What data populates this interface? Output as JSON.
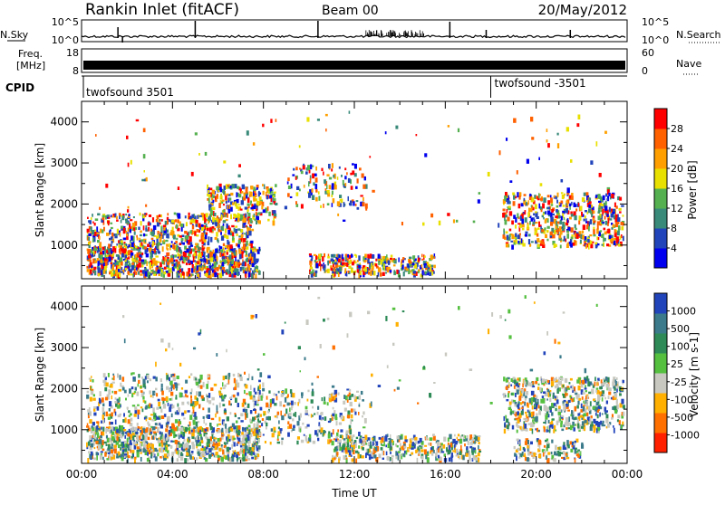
{
  "header": {
    "station": "Rankin Inlet (fitACF)",
    "beam": "Beam 00",
    "date": "20/May/2012"
  },
  "noise_panel": {
    "left_label": "N.Sky",
    "right_label": "N.Search",
    "left_ticks": [
      "10^5",
      "10^0"
    ],
    "right_ticks": [
      "10^5",
      "10^0"
    ]
  },
  "freq_panel": {
    "left_label_line1": "Freq.",
    "left_label_line2": "[MHz]",
    "left_ticks": [
      "18",
      "8"
    ],
    "right_label": "Nave",
    "right_ticks": [
      "60",
      "0"
    ]
  },
  "cpid_panel": {
    "label": "CPID",
    "segments": [
      {
        "name": "twofsound 3501",
        "start_hour": 0
      },
      {
        "name": "twofsound -3501",
        "start_hour": 18
      }
    ]
  },
  "chart_data": [
    {
      "type": "heatmap",
      "name": "",
      "ylabel": "Slant Range [km]",
      "xlabel": "",
      "xlim": [
        0,
        24
      ],
      "ylim": [
        180,
        4500
      ],
      "yticks": [
        "1000",
        "2000",
        "3000",
        "4000"
      ],
      "colorbar_label": "Power [dB]",
      "colorbar_ticks": [
        "4",
        "8",
        "12",
        "16",
        "20",
        "24",
        "28"
      ],
      "colormap": [
        "#0000ee",
        "#2244bb",
        "#3a8a7a",
        "#55b050",
        "#e8e000",
        "#ffa000",
        "#ff6000",
        "#ff0000"
      ]
    },
    {
      "type": "heatmap",
      "name": "",
      "ylabel": "Slant Range [km]",
      "xlabel": "Time UT",
      "xlim": [
        0,
        24
      ],
      "ylim": [
        180,
        4500
      ],
      "yticks": [
        "1000",
        "2000",
        "3000",
        "4000"
      ],
      "colorbar_label": "Velocity [m s-1]",
      "colorbar_ticks": [
        "1000",
        "500",
        "100",
        "25",
        "-25",
        "-100",
        "-500",
        "-1000"
      ],
      "colormap": [
        "#2244bb",
        "#3a7a8a",
        "#2e8b57",
        "#55c040",
        "#c8c8c0",
        "#ffb000",
        "#ff7000",
        "#ff2000"
      ],
      "xticks": [
        "00:00",
        "04:00",
        "08:00",
        "12:00",
        "16:00",
        "20:00",
        "00:00"
      ]
    }
  ]
}
